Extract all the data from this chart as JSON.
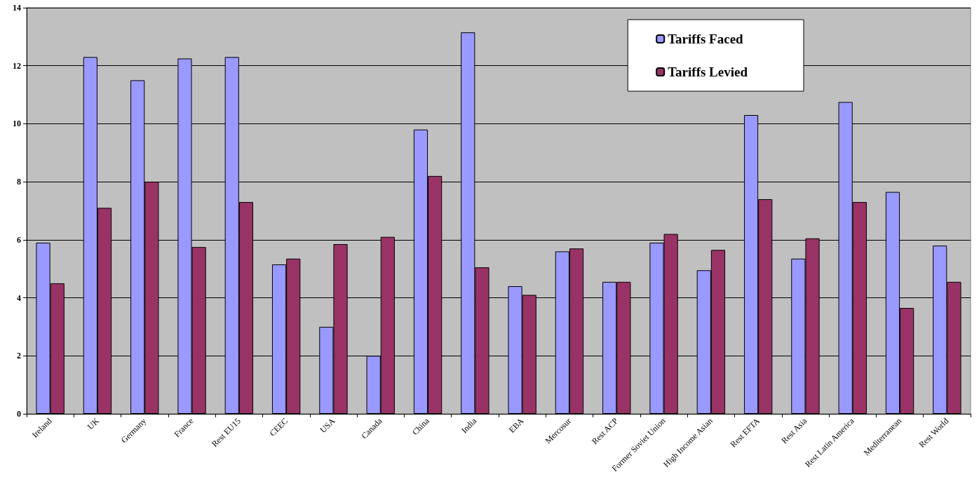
{
  "chart_data": {
    "type": "bar",
    "categories": [
      "Ireland",
      "UK",
      "Germany",
      "France",
      "Rest EU15",
      "CEEC",
      "USA",
      "Canada",
      "China",
      "India",
      "EBA",
      "Mercosur",
      "Rest ACP",
      "Former Soviet Union",
      "High Income Asian",
      "Rest EFTA",
      "Rest Asia",
      "Rest Latin America",
      "Mediterranean",
      "Rest World"
    ],
    "series": [
      {
        "name": "Tariffs Faced",
        "color": "#9999ff",
        "values": [
          5.9,
          12.3,
          11.5,
          12.25,
          12.3,
          5.15,
          3.0,
          2.0,
          9.8,
          13.15,
          4.4,
          5.6,
          4.55,
          5.9,
          4.95,
          10.3,
          5.35,
          10.75,
          7.65,
          5.8
        ]
      },
      {
        "name": "Tariffs Levied",
        "color": "#993366",
        "values": [
          4.5,
          7.1,
          8.0,
          5.75,
          7.3,
          5.35,
          5.85,
          6.1,
          8.2,
          5.05,
          4.1,
          5.7,
          4.55,
          6.2,
          5.65,
          7.4,
          6.05,
          7.3,
          3.65,
          4.55
        ]
      }
    ],
    "ylim": [
      0,
      14
    ],
    "yticks": [
      0,
      2,
      4,
      6,
      8,
      10,
      12,
      14
    ],
    "grid": "y",
    "legend": "top right"
  }
}
